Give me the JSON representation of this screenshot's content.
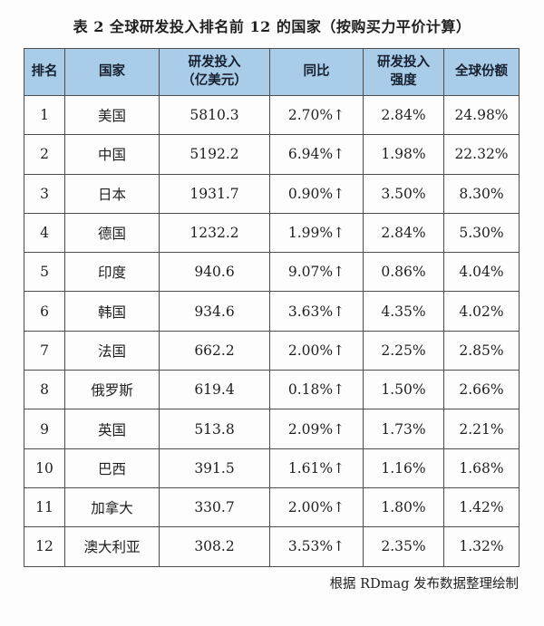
{
  "title": "表 2 全球研发投入排名前 12 的国家（按购买力平价计算）",
  "source_note": "根据 RDmag 发布数据整理绘制",
  "colors": {
    "header_bg": "#a9cce9",
    "border": "#4d4d4d",
    "text": "#1f1f1f",
    "page_bg": "#fdfdfd"
  },
  "table": {
    "headers": [
      "排名",
      "国家",
      "研发投入\n（亿美元）",
      "同比",
      "研发投入\n强度",
      "全球份额"
    ],
    "rows": [
      [
        "1",
        "美国",
        "5810.3",
        "2.70%↑",
        "2.84%",
        "24.98%"
      ],
      [
        "2",
        "中国",
        "5192.2",
        "6.94%↑",
        "1.98%",
        "22.32%"
      ],
      [
        "3",
        "日本",
        "1931.7",
        "0.90%↑",
        "3.50%",
        "8.30%"
      ],
      [
        "4",
        "德国",
        "1232.2",
        "1.99%↑",
        "2.84%",
        "5.30%"
      ],
      [
        "5",
        "印度",
        "940.6",
        "9.07%↑",
        "0.86%",
        "4.04%"
      ],
      [
        "6",
        "韩国",
        "934.6",
        "3.63%↑",
        "4.35%",
        "4.02%"
      ],
      [
        "7",
        "法国",
        "662.2",
        "2.00%↑",
        "2.25%",
        "2.85%"
      ],
      [
        "8",
        "俄罗斯",
        "619.4",
        "0.18%↑",
        "1.50%",
        "2.66%"
      ],
      [
        "9",
        "英国",
        "513.8",
        "2.09%↑",
        "1.73%",
        "2.21%"
      ],
      [
        "10",
        "巴西",
        "391.5",
        "1.61%↑",
        "1.16%",
        "1.68%"
      ],
      [
        "11",
        "加拿大",
        "330.7",
        "2.00%↑",
        "1.80%",
        "1.42%"
      ],
      [
        "12",
        "澳大利亚",
        "308.2",
        "3.53%↑",
        "2.35%",
        "1.32%"
      ]
    ]
  },
  "chart_data": {
    "type": "table",
    "title": "表 2 全球研发投入排名前 12 的国家（按购买力平价计算）",
    "source": "根据 RDmag 发布数据整理绘制",
    "columns": [
      "排名",
      "国家",
      "研发投入（亿美元）",
      "同比",
      "研发投入强度",
      "全球份额"
    ],
    "records": [
      {
        "rank": 1,
        "country": "美国",
        "rd_investment_100m_usd": 5810.3,
        "yoy_pct": 2.7,
        "yoy_direction": "up",
        "rd_intensity_pct": 2.84,
        "global_share_pct": 24.98
      },
      {
        "rank": 2,
        "country": "中国",
        "rd_investment_100m_usd": 5192.2,
        "yoy_pct": 6.94,
        "yoy_direction": "up",
        "rd_intensity_pct": 1.98,
        "global_share_pct": 22.32
      },
      {
        "rank": 3,
        "country": "日本",
        "rd_investment_100m_usd": 1931.7,
        "yoy_pct": 0.9,
        "yoy_direction": "up",
        "rd_intensity_pct": 3.5,
        "global_share_pct": 8.3
      },
      {
        "rank": 4,
        "country": "德国",
        "rd_investment_100m_usd": 1232.2,
        "yoy_pct": 1.99,
        "yoy_direction": "up",
        "rd_intensity_pct": 2.84,
        "global_share_pct": 5.3
      },
      {
        "rank": 5,
        "country": "印度",
        "rd_investment_100m_usd": 940.6,
        "yoy_pct": 9.07,
        "yoy_direction": "up",
        "rd_intensity_pct": 0.86,
        "global_share_pct": 4.04
      },
      {
        "rank": 6,
        "country": "韩国",
        "rd_investment_100m_usd": 934.6,
        "yoy_pct": 3.63,
        "yoy_direction": "up",
        "rd_intensity_pct": 4.35,
        "global_share_pct": 4.02
      },
      {
        "rank": 7,
        "country": "法国",
        "rd_investment_100m_usd": 662.2,
        "yoy_pct": 2.0,
        "yoy_direction": "up",
        "rd_intensity_pct": 2.25,
        "global_share_pct": 2.85
      },
      {
        "rank": 8,
        "country": "俄罗斯",
        "rd_investment_100m_usd": 619.4,
        "yoy_pct": 0.18,
        "yoy_direction": "up",
        "rd_intensity_pct": 1.5,
        "global_share_pct": 2.66
      },
      {
        "rank": 9,
        "country": "英国",
        "rd_investment_100m_usd": 513.8,
        "yoy_pct": 2.09,
        "yoy_direction": "up",
        "rd_intensity_pct": 1.73,
        "global_share_pct": 2.21
      },
      {
        "rank": 10,
        "country": "巴西",
        "rd_investment_100m_usd": 391.5,
        "yoy_pct": 1.61,
        "yoy_direction": "up",
        "rd_intensity_pct": 1.16,
        "global_share_pct": 1.68
      },
      {
        "rank": 11,
        "country": "加拿大",
        "rd_investment_100m_usd": 330.7,
        "yoy_pct": 2.0,
        "yoy_direction": "up",
        "rd_intensity_pct": 1.8,
        "global_share_pct": 1.42
      },
      {
        "rank": 12,
        "country": "澳大利亚",
        "rd_investment_100m_usd": 308.2,
        "yoy_pct": 3.53,
        "yoy_direction": "up",
        "rd_intensity_pct": 2.35,
        "global_share_pct": 1.32
      }
    ]
  }
}
